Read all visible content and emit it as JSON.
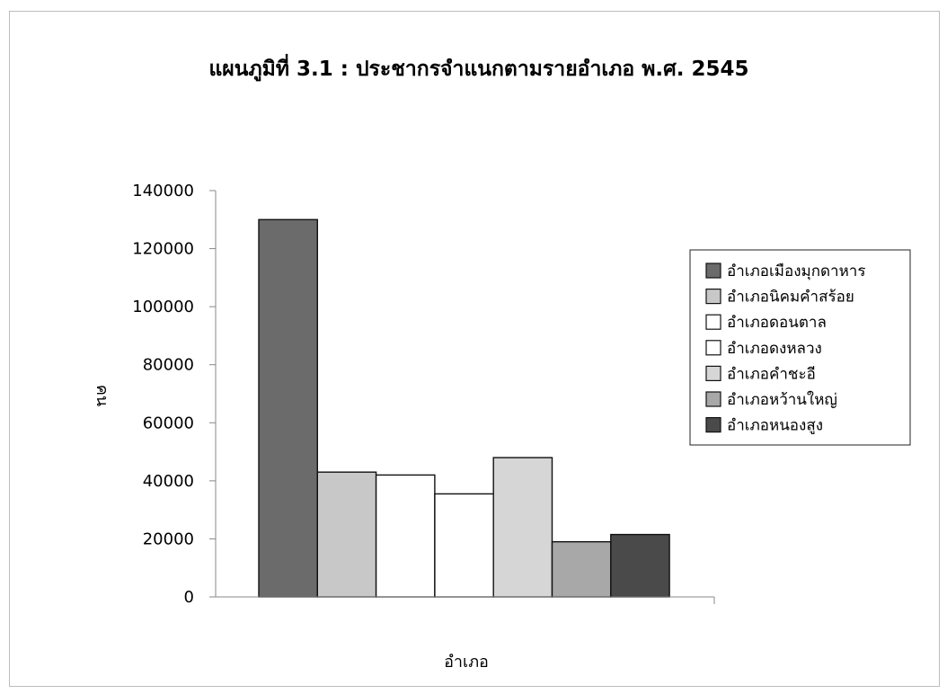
{
  "chart_data": {
    "type": "bar",
    "title": "แผนภูมิที่ 3.1 : ประชากรจำแนกตามรายอำเภอ พ.ศ. 2545",
    "xlabel": "อำเภอ",
    "ylabel": "คน",
    "ylim": [
      0,
      140000
    ],
    "yticks": [
      0,
      20000,
      40000,
      60000,
      80000,
      100000,
      120000,
      140000
    ],
    "ytick_labels": [
      "0",
      "20000",
      "40000",
      "60000",
      "80000",
      "100000",
      "120000",
      "140000"
    ],
    "legend_position": "right",
    "grid": false,
    "series": [
      {
        "name": "อำเภอเมืองมุกดาหาร",
        "value": 130000,
        "color": "#6b6b6b"
      },
      {
        "name": "อำเภอนิคมคำสร้อย",
        "value": 43000,
        "color": "#c8c8c8"
      },
      {
        "name": "อำเภอดอนตาล",
        "value": 42000,
        "color": "#ffffff"
      },
      {
        "name": "อำเภอดงหลวง",
        "value": 35500,
        "color": "#ffffff"
      },
      {
        "name": "อำเภอคำชะอี",
        "value": 48000,
        "color": "#d6d6d6"
      },
      {
        "name": "อำเภอหว้านใหญ่",
        "value": 19000,
        "color": "#a8a8a8"
      },
      {
        "name": "อำเภอหนองสูง",
        "value": 21500,
        "color": "#4a4a4a"
      }
    ]
  }
}
